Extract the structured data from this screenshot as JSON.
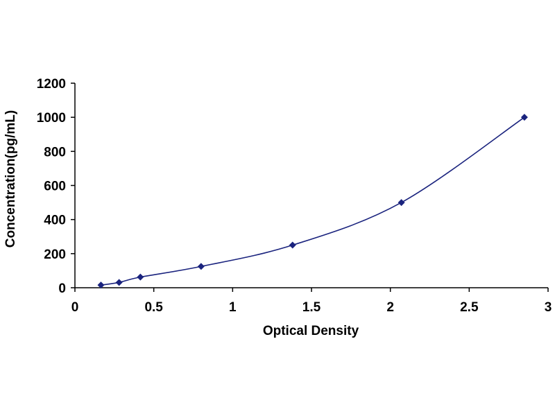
{
  "chart_data": {
    "type": "scatter",
    "xlabel": "Optical Density",
    "ylabel": "Concentration(pg/mL)",
    "xlim": [
      0,
      3
    ],
    "ylim": [
      0,
      1200
    ],
    "x_ticks": [
      "0",
      "0.5",
      "1",
      "1.5",
      "2",
      "2.5",
      "3"
    ],
    "y_ticks": [
      "0",
      "200",
      "400",
      "600",
      "800",
      "1000",
      "1200"
    ],
    "grid": false,
    "legend": "none",
    "series": [
      {
        "x": [
          0.165,
          0.28,
          0.415,
          0.8,
          1.38,
          2.07,
          2.85
        ],
        "y": [
          15.6,
          31.2,
          62.5,
          125,
          250,
          500,
          1000
        ],
        "color": "#1a237e",
        "marker": "diamond",
        "trendline": "smooth"
      }
    ]
  }
}
